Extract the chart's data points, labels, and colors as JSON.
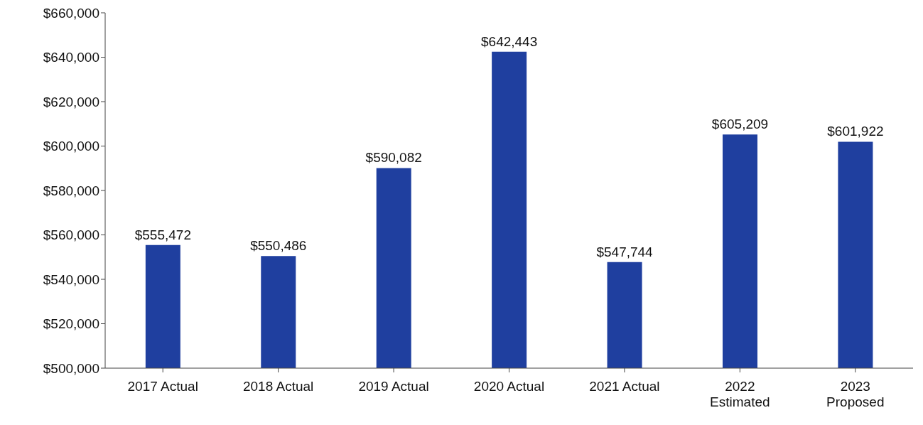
{
  "chart_data": {
    "type": "bar",
    "categories": [
      "2017 Actual",
      "2018 Actual",
      "2019 Actual",
      "2020 Actual",
      "2021 Actual",
      "2022\nEstimated",
      "2023\nProposed"
    ],
    "values": [
      555472,
      550486,
      590082,
      642443,
      547744,
      605209,
      601922
    ],
    "value_labels": [
      "$555,472",
      "$550,486",
      "$590,082",
      "$642,443",
      "$547,744",
      "$605,209",
      "$601,922"
    ],
    "color": "#1f3f9f",
    "ylim": [
      500000,
      660000
    ],
    "yticks": [
      {
        "value": 500000,
        "label": "$500,000"
      },
      {
        "value": 520000,
        "label": "$520,000"
      },
      {
        "value": 540000,
        "label": "$540,000"
      },
      {
        "value": 560000,
        "label": "$560,000"
      },
      {
        "value": 580000,
        "label": "$580,000"
      },
      {
        "value": 600000,
        "label": "$600,000"
      },
      {
        "value": 620000,
        "label": "$620,000"
      },
      {
        "value": 640000,
        "label": "$640,000"
      },
      {
        "value": 660000,
        "label": "$660,000"
      }
    ],
    "grid": false
  }
}
